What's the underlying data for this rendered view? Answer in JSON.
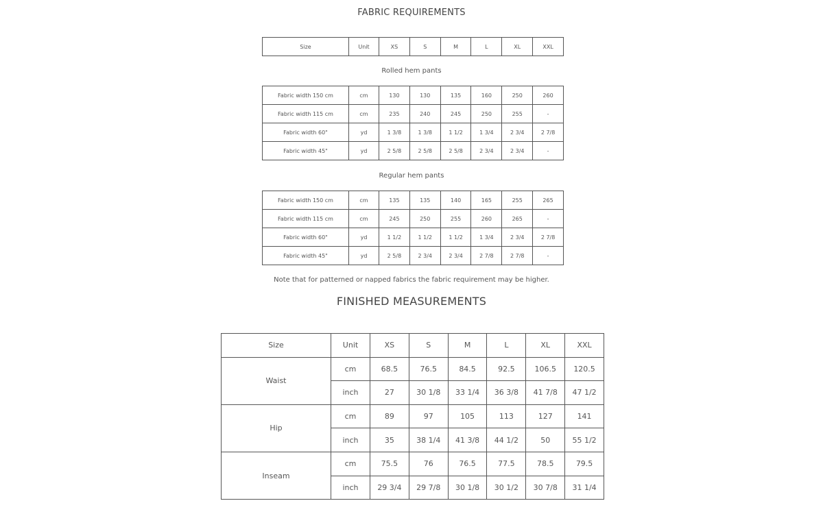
{
  "fabric": {
    "title": "FABRIC REQUIREMENTS",
    "header": [
      "Size",
      "Unit",
      "XS",
      "S",
      "M",
      "L",
      "XL",
      "XXL"
    ],
    "sections": [
      {
        "label": "Rolled hem pants",
        "rows": [
          [
            "Fabric width 150 cm",
            "cm",
            "130",
            "130",
            "135",
            "160",
            "250",
            "260"
          ],
          [
            "Fabric width 115 cm",
            "cm",
            "235",
            "240",
            "245",
            "250",
            "255",
            "-"
          ],
          [
            "Fabric width 60\"",
            "yd",
            "1 3/8",
            "1 3/8",
            "1 1/2",
            "1 3/4",
            "2 3/4",
            "2 7/8"
          ],
          [
            "Fabric width 45\"",
            "yd",
            "2 5/8",
            "2 5/8",
            "2 5/8",
            "2 3/4",
            "2 3/4",
            "-"
          ]
        ]
      },
      {
        "label": "Regular hem pants",
        "rows": [
          [
            "Fabric width 150 cm",
            "cm",
            "135",
            "135",
            "140",
            "165",
            "255",
            "265"
          ],
          [
            "Fabric width 115 cm",
            "cm",
            "245",
            "250",
            "255",
            "260",
            "265",
            "-"
          ],
          [
            "Fabric width 60\"",
            "yd",
            "1 1/2",
            "1 1/2",
            "1 1/2",
            "1 3/4",
            "2 3/4",
            "2 7/8"
          ],
          [
            "Fabric width 45\"",
            "yd",
            "2 5/8",
            "2 3/4",
            "2 3/4",
            "2 7/8",
            "2 7/8",
            "-"
          ]
        ]
      }
    ],
    "note": "Note that for patterned or napped fabrics the fabric requirement may be higher."
  },
  "finished": {
    "title": "FINISHED MEASUREMENTS",
    "header": [
      "Size",
      "Unit",
      "XS",
      "S",
      "M",
      "L",
      "XL",
      "XXL"
    ],
    "groups": [
      {
        "name": "Waist",
        "rows": [
          [
            "cm",
            "68.5",
            "76.5",
            "84.5",
            "92.5",
            "106.5",
            "120.5"
          ],
          [
            "inch",
            "27",
            "30 1/8",
            "33 1/4",
            "36 3/8",
            "41 7/8",
            "47 1/2"
          ]
        ]
      },
      {
        "name": "Hip",
        "rows": [
          [
            "cm",
            "89",
            "97",
            "105",
            "113",
            "127",
            "141"
          ],
          [
            "inch",
            "35",
            "38 1/4",
            "41 3/8",
            "44 1/2",
            "50",
            "55 1/2"
          ]
        ]
      },
      {
        "name": "Inseam",
        "rows": [
          [
            "cm",
            "75.5",
            "76",
            "76.5",
            "77.5",
            "78.5",
            "79.5"
          ],
          [
            "inch",
            "29 3/4",
            "29 7/8",
            "30 1/8",
            "30 1/2",
            "30 7/8",
            "31 1/4"
          ]
        ]
      }
    ]
  }
}
